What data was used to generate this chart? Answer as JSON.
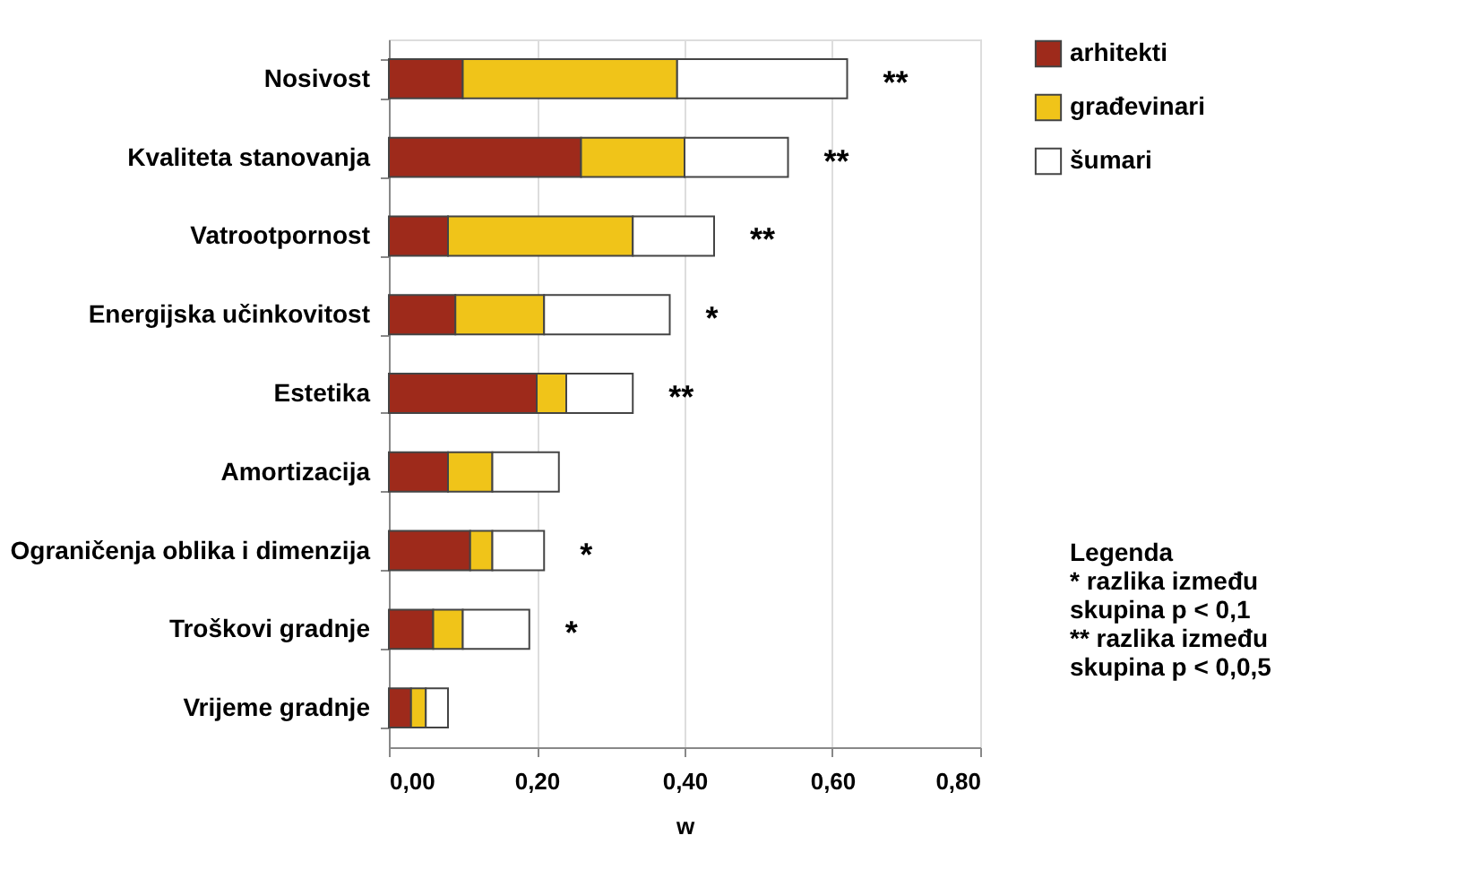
{
  "chart_data": {
    "type": "bar",
    "orientation": "horizontal",
    "stacked": true,
    "categories": [
      "Nosivost",
      "Kvaliteta stanovanja",
      "Vatrootpornost",
      "Energijska učinkovitost",
      "Estetika",
      "Amortizacija",
      "Ograničenja oblika i dimenzija",
      "Troškovi gradnje",
      "Vrijeme gradnje"
    ],
    "series": [
      {
        "name": "arhitekti",
        "color": "#9e2a1b",
        "values": [
          0.1,
          0.26,
          0.08,
          0.09,
          0.2,
          0.08,
          0.11,
          0.06,
          0.03
        ]
      },
      {
        "name": "građevinari",
        "color": "#f0c419",
        "values": [
          0.29,
          0.14,
          0.25,
          0.12,
          0.04,
          0.06,
          0.03,
          0.04,
          0.02
        ]
      },
      {
        "name": "šumari",
        "color": "#ffffff",
        "values": [
          0.23,
          0.14,
          0.11,
          0.17,
          0.09,
          0.09,
          0.07,
          0.09,
          0.03
        ]
      }
    ],
    "xlabel": "w",
    "xlim": [
      0,
      0.8
    ],
    "xticks": [
      {
        "value": 0,
        "label": "0,00"
      },
      {
        "value": 0.2,
        "label": "0,20"
      },
      {
        "value": 0.4,
        "label": "0,40"
      },
      {
        "value": 0.6,
        "label": "0,60"
      },
      {
        "value": 0.8,
        "label": "0,80"
      }
    ],
    "grid": "x",
    "legend": "right",
    "annotations": [
      {
        "text": "**",
        "x": 0.62,
        "y": "Nosivost"
      },
      {
        "text": "**",
        "x": 0.54,
        "y": "Kvaliteta stanovanja"
      },
      {
        "text": "**",
        "x": 0.44,
        "y": "Vatrootpornost"
      },
      {
        "text": "*",
        "x": 0.38,
        "y": "Energijska učinkovitost"
      },
      {
        "text": "**",
        "x": 0.33,
        "y": "Estetika"
      },
      {
        "text": "*",
        "x": 0.21,
        "y": "Ograničenja oblika i dimenzija"
      },
      {
        "text": "*",
        "x": 0.19,
        "y": "Troškovi gradnje"
      },
      "Legenda\n* razlika između\nskupina p < 0,1\n** razlika između\nskupina p < 0,0,5"
    ]
  }
}
